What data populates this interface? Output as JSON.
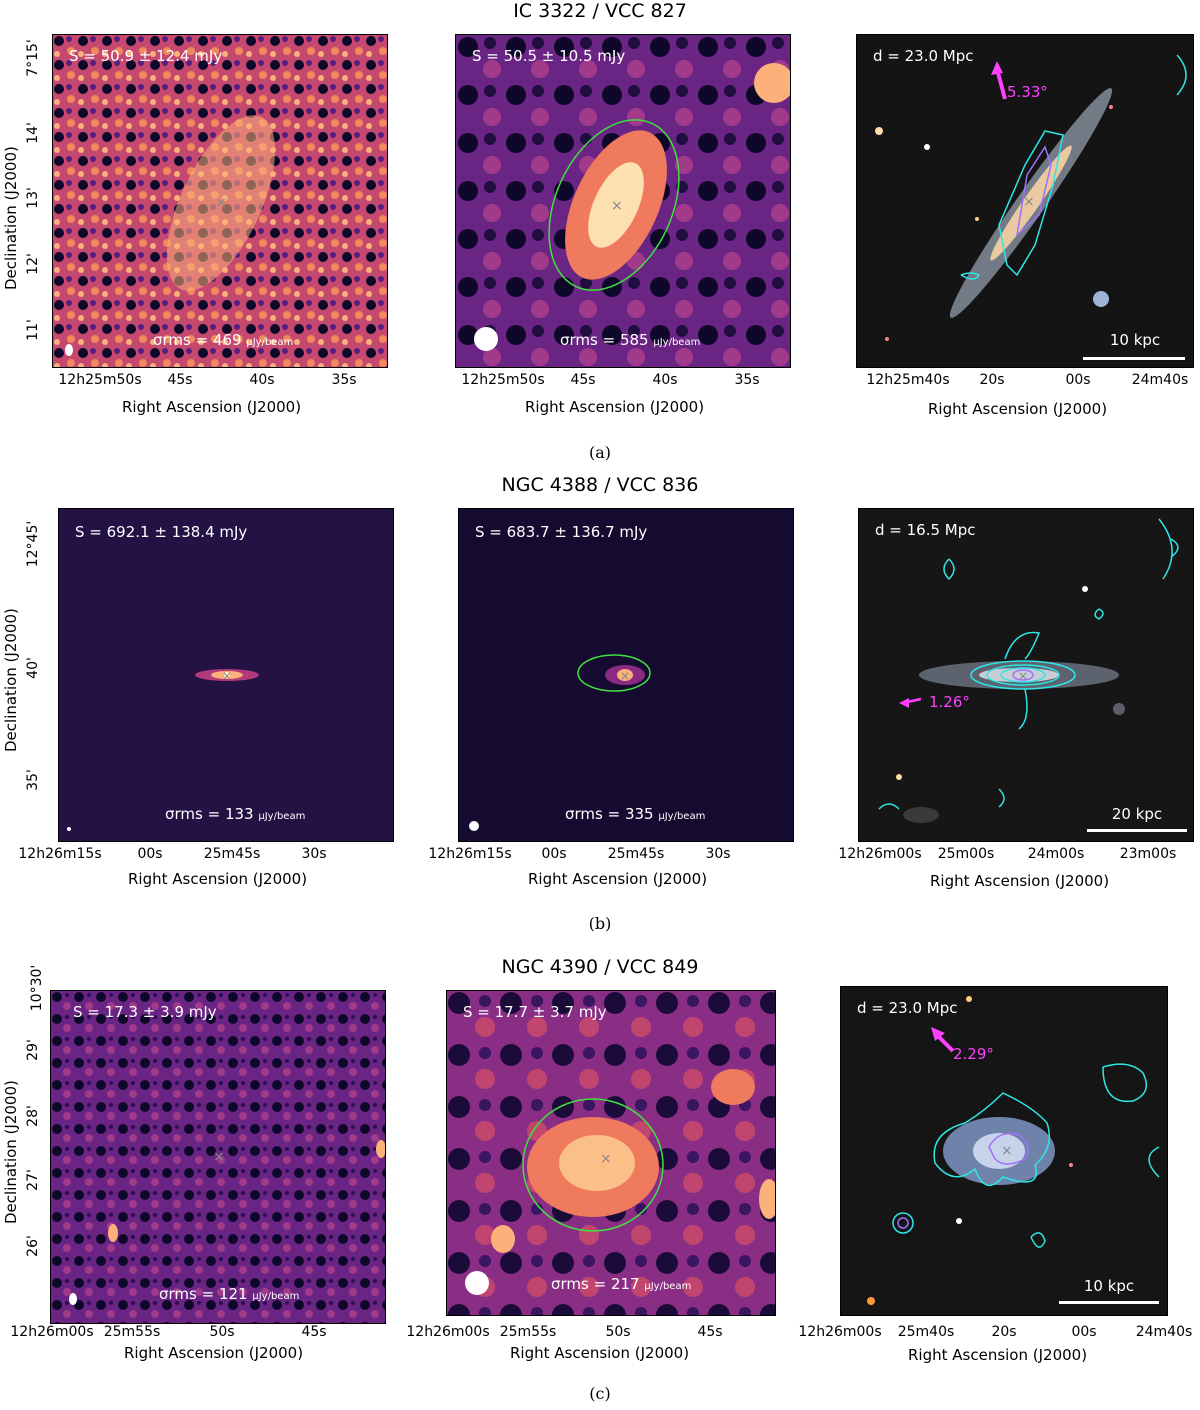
{
  "rows": [
    {
      "title": "IC 3322 / VCC 827",
      "caption": "(a)",
      "left_flux": "S = 50.9 ± 12.4 mJy",
      "left_rms_prefix": "σrms = 469",
      "mid_flux": "S = 50.5 ± 10.5 mJy",
      "mid_rms_prefix": "σrms = 585",
      "right_dist": "d = 23.0 Mpc",
      "right_angle": "5.33°",
      "right_scale": "10 kpc",
      "ylabel": "Declination (J2000)",
      "xlabel": "Right Ascension (J2000)",
      "yticks": [
        "7°15'",
        "14'",
        "13'",
        "12'",
        "11'"
      ],
      "xticks_radio": [
        "12h25m50s",
        "45s",
        "40s",
        "35s"
      ],
      "xticks_optical": [
        "12h25m40s",
        "20s",
        "00s",
        "24m40s"
      ]
    },
    {
      "title": "NGC 4388 / VCC 836",
      "caption": "(b)",
      "left_flux": "S = 692.1 ± 138.4 mJy",
      "left_rms_prefix": "σrms = 133",
      "mid_flux": "S = 683.7 ± 136.7 mJy",
      "mid_rms_prefix": "σrms = 335",
      "right_dist": "d = 16.5 Mpc",
      "right_angle": "1.26°",
      "right_scale": "20 kpc",
      "ylabel": "Declination (J2000)",
      "xlabel": "Right Ascension (J2000)",
      "yticks": [
        "12°45'",
        "40'",
        "35'"
      ],
      "xticks_radio": [
        "12h26m15s",
        "00s",
        "25m45s",
        "30s"
      ],
      "xticks_optical": [
        "12h26m00s",
        "25m00s",
        "24m00s",
        "23m00s"
      ]
    },
    {
      "title": "NGC 4390 / VCC 849",
      "caption": "(c)",
      "left_flux": "S = 17.3 ± 3.9 mJy",
      "left_rms_prefix": "σrms = 121",
      "mid_flux": "S = 17.7 ± 3.7 mJy",
      "mid_rms_prefix": "σrms = 217",
      "right_dist": "d = 23.0 Mpc",
      "right_angle": "2.29°",
      "right_scale": "10 kpc",
      "ylabel": "Declination (J2000)",
      "xlabel": "Right Ascension (J2000)",
      "yticks": [
        "10°30'",
        "29'",
        "28'",
        "27'",
        "26'"
      ],
      "xticks_radio": [
        "12h26m00s",
        "25m55s",
        "50s",
        "45s"
      ],
      "xticks_optical": [
        "12h26m00s",
        "25m40s",
        "20s",
        "00s",
        "24m40s"
      ]
    }
  ],
  "rms_unit": "μJy/beam",
  "colors": {
    "radio_dark": "#0d0829",
    "radio_mid": "#7b2a8c",
    "radio_bright": "#fcb07a",
    "ellipse": "#40e040",
    "contour_cyan": "#2ee6e6",
    "contour_violet": "#a070ff",
    "angle_magenta": "#ff40ff"
  }
}
